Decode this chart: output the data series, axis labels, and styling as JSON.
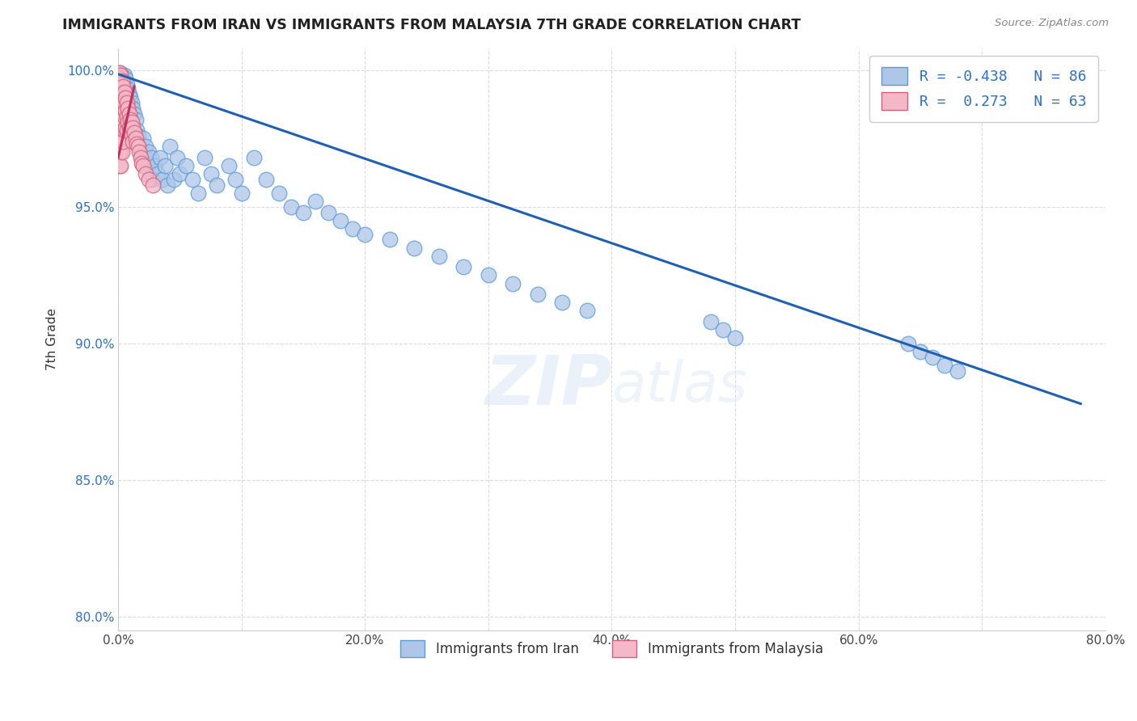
{
  "title": "IMMIGRANTS FROM IRAN VS IMMIGRANTS FROM MALAYSIA 7TH GRADE CORRELATION CHART",
  "source_text": "Source: ZipAtlas.com",
  "ylabel": "7th Grade",
  "watermark": "ZIPatlas",
  "xmin": 0.0,
  "xmax": 0.8,
  "ymin": 0.795,
  "ymax": 1.008,
  "xticks": [
    0.0,
    0.1,
    0.2,
    0.3,
    0.4,
    0.5,
    0.6,
    0.7,
    0.8
  ],
  "xticklabels": [
    "0.0%",
    "",
    "20.0%",
    "",
    "40.0%",
    "",
    "60.0%",
    "",
    "80.0%"
  ],
  "yticks": [
    0.8,
    0.85,
    0.9,
    0.95,
    1.0
  ],
  "yticklabels": [
    "80.0%",
    "85.0%",
    "90.0%",
    "95.0%",
    "100.0%"
  ],
  "iran_color": "#aec6e8",
  "iran_edge_color": "#5b9bd5",
  "malaysia_color": "#f4b8c8",
  "malaysia_edge_color": "#d4607a",
  "iran_R": -0.438,
  "iran_N": 86,
  "malaysia_R": 0.273,
  "malaysia_N": 63,
  "trend_iran_color": "#2060b0",
  "trend_malaysia_color": "#c03060",
  "legend_iran_label": "Immigrants from Iran",
  "legend_malaysia_label": "Immigrants from Malaysia",
  "trend_iran_x0": 0.0,
  "trend_iran_y0": 0.9985,
  "trend_iran_x1": 0.78,
  "trend_iran_y1": 0.878,
  "trend_malaysia_x0": 0.0,
  "trend_malaysia_y0": 0.968,
  "trend_malaysia_x1": 0.013,
  "trend_malaysia_y1": 0.994,
  "iran_scatter_x": [
    0.001,
    0.002,
    0.002,
    0.003,
    0.003,
    0.004,
    0.004,
    0.005,
    0.005,
    0.006,
    0.006,
    0.007,
    0.007,
    0.008,
    0.008,
    0.009,
    0.009,
    0.01,
    0.01,
    0.011,
    0.011,
    0.012,
    0.012,
    0.013,
    0.014,
    0.015,
    0.015,
    0.016,
    0.017,
    0.018,
    0.019,
    0.02,
    0.021,
    0.022,
    0.023,
    0.024,
    0.025,
    0.026,
    0.027,
    0.028,
    0.03,
    0.032,
    0.034,
    0.036,
    0.038,
    0.04,
    0.042,
    0.045,
    0.048,
    0.05,
    0.055,
    0.06,
    0.065,
    0.07,
    0.075,
    0.08,
    0.09,
    0.095,
    0.1,
    0.11,
    0.12,
    0.13,
    0.14,
    0.15,
    0.16,
    0.17,
    0.18,
    0.19,
    0.2,
    0.22,
    0.24,
    0.26,
    0.28,
    0.3,
    0.32,
    0.34,
    0.36,
    0.38,
    0.48,
    0.49,
    0.5,
    0.64,
    0.65,
    0.66,
    0.67,
    0.68
  ],
  "iran_scatter_y": [
    0.999,
    0.997,
    0.992,
    0.998,
    0.994,
    0.996,
    0.989,
    0.998,
    0.991,
    0.997,
    0.988,
    0.995,
    0.985,
    0.993,
    0.983,
    0.991,
    0.98,
    0.99,
    0.978,
    0.988,
    0.976,
    0.986,
    0.975,
    0.984,
    0.982,
    0.978,
    0.974,
    0.976,
    0.972,
    0.97,
    0.968,
    0.975,
    0.965,
    0.972,
    0.968,
    0.965,
    0.97,
    0.962,
    0.968,
    0.96,
    0.965,
    0.962,
    0.968,
    0.96,
    0.965,
    0.958,
    0.972,
    0.96,
    0.968,
    0.962,
    0.965,
    0.96,
    0.955,
    0.968,
    0.962,
    0.958,
    0.965,
    0.96,
    0.955,
    0.968,
    0.96,
    0.955,
    0.95,
    0.948,
    0.952,
    0.948,
    0.945,
    0.942,
    0.94,
    0.938,
    0.935,
    0.932,
    0.928,
    0.925,
    0.922,
    0.918,
    0.915,
    0.912,
    0.908,
    0.905,
    0.902,
    0.9,
    0.897,
    0.895,
    0.892,
    0.89
  ],
  "malaysia_scatter_x": [
    0.001,
    0.001,
    0.001,
    0.001,
    0.001,
    0.001,
    0.001,
    0.001,
    0.001,
    0.001,
    0.001,
    0.002,
    0.002,
    0.002,
    0.002,
    0.002,
    0.002,
    0.002,
    0.002,
    0.002,
    0.003,
    0.003,
    0.003,
    0.003,
    0.003,
    0.003,
    0.003,
    0.004,
    0.004,
    0.004,
    0.004,
    0.004,
    0.005,
    0.005,
    0.005,
    0.005,
    0.006,
    0.006,
    0.006,
    0.007,
    0.007,
    0.007,
    0.008,
    0.008,
    0.009,
    0.009,
    0.01,
    0.01,
    0.011,
    0.011,
    0.012,
    0.012,
    0.013,
    0.014,
    0.015,
    0.016,
    0.017,
    0.018,
    0.019,
    0.02,
    0.022,
    0.025,
    0.028
  ],
  "malaysia_scatter_y": [
    0.999,
    0.997,
    0.995,
    0.992,
    0.989,
    0.985,
    0.982,
    0.978,
    0.974,
    0.97,
    0.965,
    0.998,
    0.995,
    0.991,
    0.987,
    0.982,
    0.978,
    0.975,
    0.97,
    0.965,
    0.996,
    0.992,
    0.988,
    0.984,
    0.98,
    0.975,
    0.97,
    0.994,
    0.99,
    0.986,
    0.98,
    0.974,
    0.992,
    0.988,
    0.983,
    0.978,
    0.99,
    0.985,
    0.979,
    0.988,
    0.983,
    0.978,
    0.986,
    0.981,
    0.984,
    0.979,
    0.982,
    0.978,
    0.981,
    0.976,
    0.979,
    0.974,
    0.977,
    0.975,
    0.973,
    0.972,
    0.97,
    0.968,
    0.966,
    0.965,
    0.962,
    0.96,
    0.958
  ]
}
